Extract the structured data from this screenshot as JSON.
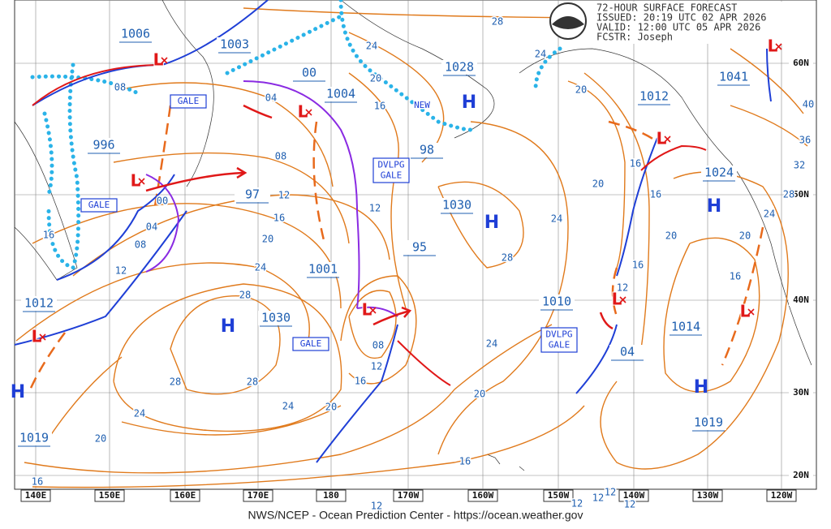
{
  "header": {
    "title": "72-HOUR SURFACE FORECAST",
    "issued": "ISSUED: 20:19 UTC 02 APR 2026",
    "valid": "VALID:  12:00 UTC 05 APR 2026",
    "forecaster": "FCSTR:  Joseph"
  },
  "footer": "NWS/NCEP - Ocean Prediction Center - https://ocean.weather.gov",
  "longitude_labels": [
    "140E",
    "150E",
    "160E",
    "170E",
    "180",
    "170W",
    "160W",
    "150W",
    "140W",
    "130W",
    "120W"
  ],
  "latitude_labels": [
    "60N",
    "50N",
    "40N",
    "30N",
    "20N"
  ],
  "pressure_labels": [
    "1006",
    "1003",
    "00",
    "1004",
    "1028",
    "996",
    "97",
    "98",
    "1030",
    "95",
    "1001",
    "1030",
    "1012",
    "1019",
    "1010",
    "1012",
    "1041",
    "1024",
    "1014",
    "1019",
    "04"
  ],
  "highs": [
    "H",
    "H",
    "H",
    "H",
    "H",
    "H"
  ],
  "lows": [
    "L",
    "L",
    "L",
    "L",
    "L",
    "L",
    "L",
    "L",
    "L"
  ],
  "isobar_labels": [
    "28",
    "24",
    "24",
    "20",
    "16",
    "08",
    "04",
    "08",
    "12",
    "16",
    "20",
    "24",
    "28",
    "20",
    "20",
    "16",
    "16",
    "24",
    "28",
    "12",
    "00",
    "04",
    "08",
    "12",
    "16",
    "16",
    "12",
    "20",
    "20",
    "16",
    "24",
    "28",
    "32",
    "36",
    "40",
    "08",
    "12",
    "16",
    "20",
    "24",
    "28",
    "28",
    "24",
    "20",
    "16",
    "20",
    "24",
    "16",
    "12",
    "12",
    "12",
    "12",
    "12"
  ],
  "warnings": [
    "GALE",
    "GALE",
    "GALE",
    "DVLPG GALE",
    "DVLPG GALE"
  ],
  "notes": [
    "NEW"
  ]
}
